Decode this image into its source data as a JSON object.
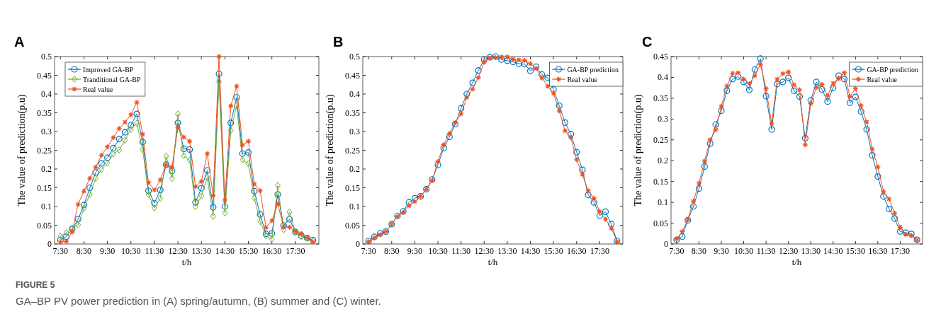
{
  "chart_data": [
    {
      "type": "line",
      "title": "A",
      "xlabel": "t/h",
      "ylabel": "The value of prediction(p.u)",
      "legend": "top left",
      "grid": false,
      "line_style": "solid",
      "x": [
        7.5,
        7.75,
        8,
        8.25,
        8.5,
        8.75,
        9,
        9.25,
        9.5,
        9.75,
        10,
        10.25,
        10.5,
        10.75,
        11,
        11.25,
        11.5,
        11.75,
        12,
        12.25,
        12.5,
        12.75,
        13,
        13.25,
        13.5,
        13.75,
        14,
        14.25,
        14.5,
        14.75,
        15,
        15.25,
        15.5,
        15.75,
        16,
        16.25,
        16.5,
        16.75,
        17,
        17.25,
        17.5,
        17.75,
        18,
        18.25
      ],
      "xlim": [
        7.25,
        18.5
      ],
      "xticks": [
        {
          "value": 7.5,
          "label": "7:30"
        },
        {
          "value": 8.5,
          "label": "8:30"
        },
        {
          "value": 9.5,
          "label": "9:30"
        },
        {
          "value": 10.5,
          "label": "10:30"
        },
        {
          "value": 11.5,
          "label": "11:30"
        },
        {
          "value": 12.5,
          "label": "12:30"
        },
        {
          "value": 13.5,
          "label": "13:30"
        },
        {
          "value": 14.5,
          "label": "14:30"
        },
        {
          "value": 15.5,
          "label": "15:30"
        },
        {
          "value": 16.5,
          "label": "16:30"
        },
        {
          "value": 17.5,
          "label": "17:30"
        }
      ],
      "ylim": [
        0,
        0.5
      ],
      "yticks": [
        0,
        0.05,
        0.1,
        0.15,
        0.2,
        0.25,
        0.3,
        0.35,
        0.4,
        0.45,
        0.5
      ],
      "annotations": [
        "FIGURE 5",
        "GA–BP PV power prediction in (A) spring/autumn, (B) summer and (C) winter."
      ],
      "series": [
        {
          "name": "Improved GA-BP",
          "color": "#0072bd",
          "marker": "circle",
          "values": [
            0.011,
            0.019,
            0.04,
            0.066,
            0.104,
            0.15,
            0.191,
            0.215,
            0.23,
            0.256,
            0.28,
            0.298,
            0.317,
            0.347,
            0.272,
            0.142,
            0.109,
            0.144,
            0.212,
            0.195,
            0.323,
            0.254,
            0.252,
            0.111,
            0.149,
            0.196,
            0.098,
            0.454,
            0.1,
            0.323,
            0.391,
            0.241,
            0.244,
            0.141,
            0.079,
            0.027,
            0.028,
            0.132,
            0.049,
            0.066,
            0.032,
            0.022,
            0.016,
            0.01
          ]
        },
        {
          "name": "Tranditional GA-BP",
          "color": "#77ac30",
          "marker": "diamond",
          "values": [
            0.021,
            0.03,
            0.042,
            0.051,
            0.095,
            0.132,
            0.175,
            0.199,
            0.216,
            0.24,
            0.251,
            0.277,
            0.306,
            0.322,
            0.252,
            0.132,
            0.096,
            0.122,
            0.234,
            0.175,
            0.347,
            0.235,
            0.224,
            0.1,
            0.128,
            0.177,
            0.074,
            0.433,
            0.083,
            0.303,
            0.369,
            0.224,
            0.214,
            0.123,
            0.06,
            0.022,
            0.013,
            0.156,
            0.038,
            0.085,
            0.032,
            0.02,
            0.015,
            0.008
          ]
        },
        {
          "name": "Real value",
          "color": "#f4511e",
          "marker": "cross",
          "values": [
            0.005,
            0.007,
            0.032,
            0.106,
            0.141,
            0.175,
            0.205,
            0.237,
            0.259,
            0.284,
            0.308,
            0.325,
            0.345,
            0.378,
            0.293,
            0.164,
            0.144,
            0.171,
            0.211,
            0.205,
            0.31,
            0.285,
            0.274,
            0.153,
            0.167,
            0.241,
            0.129,
            0.5,
            0.117,
            0.368,
            0.421,
            0.264,
            0.274,
            0.16,
            0.142,
            0.044,
            0.062,
            0.107,
            0.045,
            0.045,
            0.033,
            0.028,
            0.016,
            0.005
          ]
        }
      ]
    },
    {
      "type": "line",
      "title": "B",
      "xlabel": "t/h",
      "ylabel": "The value of prediction(p.u)",
      "legend": "top right",
      "grid": false,
      "line_style": "solid",
      "x": [
        7.5,
        7.75,
        8,
        8.25,
        8.5,
        8.75,
        9,
        9.25,
        9.5,
        9.75,
        10,
        10.25,
        10.5,
        10.75,
        11,
        11.25,
        11.5,
        11.75,
        12,
        12.25,
        12.5,
        12.75,
        13,
        13.25,
        13.5,
        13.75,
        14,
        14.25,
        14.5,
        14.75,
        15,
        15.25,
        15.5,
        15.75,
        16,
        16.25,
        16.5,
        16.75,
        17,
        17.25,
        17.5,
        17.75,
        18,
        18.25
      ],
      "xlim": [
        7.25,
        18.5
      ],
      "xticks": [
        {
          "value": 7.5,
          "label": "7:30"
        },
        {
          "value": 8.5,
          "label": "8:30"
        },
        {
          "value": 9.5,
          "label": "9:30"
        },
        {
          "value": 10.5,
          "label": "10:30"
        },
        {
          "value": 11.5,
          "label": "11:30"
        },
        {
          "value": 12.5,
          "label": "12:30"
        },
        {
          "value": 13.5,
          "label": "13:30"
        },
        {
          "value": 14.5,
          "label": "14:30"
        },
        {
          "value": 15.5,
          "label": "15:30"
        },
        {
          "value": 16.5,
          "label": "16:30"
        },
        {
          "value": 17.5,
          "label": "17:30"
        }
      ],
      "ylim": [
        0,
        0.5
      ],
      "yticks": [
        0,
        0.05,
        0.1,
        0.15,
        0.2,
        0.25,
        0.3,
        0.35,
        0.4,
        0.45,
        0.5
      ],
      "series": [
        {
          "name": "GA-BP prediction",
          "color": "#0072bd",
          "marker": "circle",
          "values": [
            0.008,
            0.019,
            0.028,
            0.033,
            0.053,
            0.075,
            0.087,
            0.111,
            0.122,
            0.127,
            0.146,
            0.172,
            0.211,
            0.256,
            0.286,
            0.32,
            0.362,
            0.4,
            0.43,
            0.463,
            0.492,
            0.498,
            0.5,
            0.492,
            0.489,
            0.486,
            0.481,
            0.48,
            0.462,
            0.473,
            0.452,
            0.443,
            0.412,
            0.369,
            0.324,
            0.293,
            0.245,
            0.198,
            0.131,
            0.111,
            0.076,
            0.086,
            0.053,
            0.008
          ]
        },
        {
          "name": "Real value",
          "color": "#f4511e",
          "marker": "cross",
          "values": [
            0.006,
            0.016,
            0.025,
            0.033,
            0.053,
            0.073,
            0.084,
            0.102,
            0.113,
            0.127,
            0.146,
            0.169,
            0.22,
            0.265,
            0.295,
            0.324,
            0.347,
            0.391,
            0.413,
            0.444,
            0.485,
            0.496,
            0.497,
            0.499,
            0.499,
            0.493,
            0.491,
            0.49,
            0.481,
            0.468,
            0.443,
            0.421,
            0.402,
            0.355,
            0.302,
            0.284,
            0.225,
            0.185,
            0.142,
            0.122,
            0.087,
            0.066,
            0.042,
            0.006
          ]
        }
      ]
    },
    {
      "type": "line",
      "title": "C",
      "xlabel": "t/h",
      "ylabel": "The value of prediction(p.u)",
      "legend": "top right",
      "grid": false,
      "line_style": "solid",
      "x": [
        7.5,
        7.75,
        8,
        8.25,
        8.5,
        8.75,
        9,
        9.25,
        9.5,
        9.75,
        10,
        10.25,
        10.5,
        10.75,
        11,
        11.25,
        11.5,
        11.75,
        12,
        12.25,
        12.5,
        12.75,
        13,
        13.25,
        13.5,
        13.75,
        14,
        14.25,
        14.5,
        14.75,
        15,
        15.25,
        15.5,
        15.75,
        16,
        16.25,
        16.5,
        16.75,
        17,
        17.25,
        17.5,
        17.75,
        18,
        18.25
      ],
      "xlim": [
        7.25,
        18.5
      ],
      "xticks": [
        {
          "value": 7.5,
          "label": "7:30"
        },
        {
          "value": 8.5,
          "label": "8:30"
        },
        {
          "value": 9.5,
          "label": "9:30"
        },
        {
          "value": 10.5,
          "label": "10:30"
        },
        {
          "value": 11.5,
          "label": "11:30"
        },
        {
          "value": 12.5,
          "label": "12:30"
        },
        {
          "value": 13.5,
          "label": "13:30"
        },
        {
          "value": 14.5,
          "label": "14:30"
        },
        {
          "value": 15.5,
          "label": "15:30"
        },
        {
          "value": 16.5,
          "label": "16:30"
        },
        {
          "value": 17.5,
          "label": "17:30"
        }
      ],
      "ylim": [
        0,
        0.45
      ],
      "yticks": [
        0,
        0.05,
        0.1,
        0.15,
        0.2,
        0.25,
        0.3,
        0.35,
        0.4,
        0.45
      ],
      "series": [
        {
          "name": "GA-BP prediction",
          "color": "#0072bd",
          "marker": "circle",
          "values": [
            0.01,
            0.018,
            0.057,
            0.09,
            0.133,
            0.186,
            0.241,
            0.287,
            0.32,
            0.368,
            0.396,
            0.402,
            0.389,
            0.37,
            0.419,
            0.445,
            0.355,
            0.275,
            0.384,
            0.389,
            0.399,
            0.368,
            0.354,
            0.254,
            0.345,
            0.389,
            0.371,
            0.342,
            0.375,
            0.404,
            0.396,
            0.339,
            0.353,
            0.318,
            0.275,
            0.213,
            0.162,
            0.114,
            0.084,
            0.061,
            0.03,
            0.027,
            0.024,
            0.01
          ]
        },
        {
          "name": "Real value",
          "color": "#f4511e",
          "marker": "cross",
          "values": [
            0.012,
            0.03,
            0.058,
            0.103,
            0.146,
            0.199,
            0.25,
            0.274,
            0.331,
            0.379,
            0.41,
            0.411,
            0.396,
            0.385,
            0.404,
            0.431,
            0.373,
            0.289,
            0.396,
            0.409,
            0.413,
            0.382,
            0.37,
            0.238,
            0.337,
            0.376,
            0.383,
            0.356,
            0.386,
            0.397,
            0.411,
            0.354,
            0.373,
            0.332,
            0.293,
            0.228,
            0.185,
            0.126,
            0.108,
            0.074,
            0.04,
            0.023,
            0.02,
            0.009
          ]
        }
      ]
    }
  ]
}
